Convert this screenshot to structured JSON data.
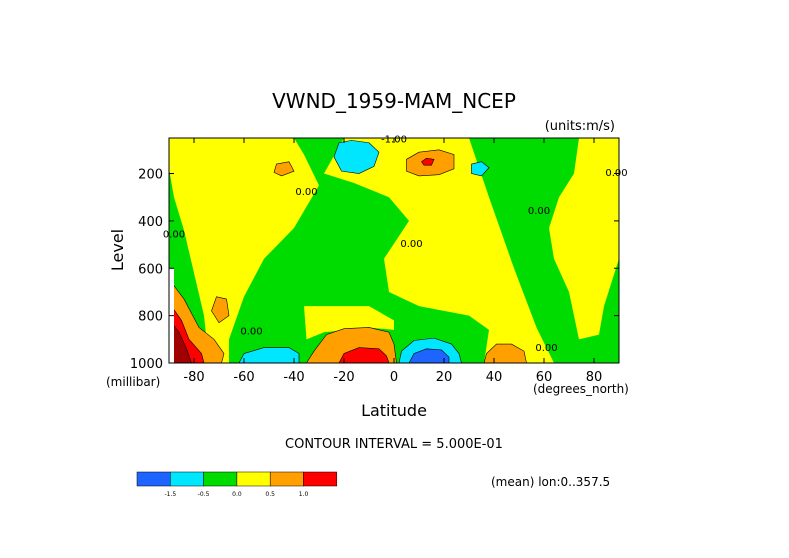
{
  "chart_data": {
    "type": "contour",
    "title": "VWND_1959-MAM_NCEP",
    "units_label": "(units:m/s)",
    "xlabel": "Latitude",
    "ylabel": "Level",
    "x_units": "(degrees_north)",
    "y_units": "(millibar)",
    "xlim": [
      -90,
      90
    ],
    "ylim": [
      1000,
      50
    ],
    "x_ticks": [
      -80,
      -60,
      -40,
      -20,
      0,
      20,
      40,
      60,
      80
    ],
    "y_ticks": [
      200,
      400,
      600,
      800,
      1000
    ],
    "y_reversed": true,
    "contour_interval_text": "CONTOUR INTERVAL = 5.000E-01",
    "mean_note": "(mean) lon:0..357.5",
    "contour_labels": [
      {
        "text": "-1.00",
        "x": 0,
        "y": 70
      },
      {
        "text": "0.00",
        "x": -35,
        "y": 290
      },
      {
        "text": "0.00",
        "x": 7,
        "y": 510
      },
      {
        "text": "0.00",
        "x": 58,
        "y": 370
      },
      {
        "text": "0.00",
        "x": -57,
        "y": 880
      },
      {
        "text": "0.00",
        "x": 61,
        "y": 950
      },
      {
        "text": "0.00",
        "x": -88,
        "y": 470
      },
      {
        "text": "0.00",
        "x": 89,
        "y": 210
      }
    ],
    "legend": {
      "colors": [
        "#1e64ff",
        "#00e6ff",
        "#00dc00",
        "#ffff00",
        "#ffa000",
        "#ff0000"
      ],
      "labels": [
        "-1.5",
        "-0.5",
        "0.0",
        "0.5",
        "1.0"
      ]
    },
    "regions": [
      {
        "level": "negative_strong",
        "color": "#00e6ff",
        "pts": [
          [
            -22,
            70
          ],
          [
            -17,
            60
          ],
          [
            -10,
            70
          ],
          [
            -6,
            110
          ],
          [
            -8,
            170
          ],
          [
            -14,
            200
          ],
          [
            -21,
            190
          ],
          [
            -24,
            130
          ]
        ]
      },
      {
        "level": "negative_weak",
        "color": "#00e6ff",
        "pts": [
          [
            31,
            160
          ],
          [
            35,
            150
          ],
          [
            38,
            175
          ],
          [
            35,
            210
          ],
          [
            31,
            200
          ]
        ]
      },
      {
        "level": "positive_small",
        "color": "#ffa000",
        "pts": [
          [
            -47,
            160
          ],
          [
            -42,
            150
          ],
          [
            -40,
            190
          ],
          [
            -45,
            210
          ],
          [
            -48,
            195
          ]
        ]
      },
      {
        "level": "positive",
        "color": "#ffa000",
        "pts": [
          [
            5,
            140
          ],
          [
            10,
            110
          ],
          [
            18,
            100
          ],
          [
            24,
            120
          ],
          [
            24,
            180
          ],
          [
            18,
            205
          ],
          [
            10,
            210
          ],
          [
            5,
            190
          ]
        ]
      },
      {
        "level": "positive_peak",
        "color": "#ff0000",
        "pts": [
          [
            11,
            150
          ],
          [
            13,
            135
          ],
          [
            16,
            140
          ],
          [
            15,
            165
          ],
          [
            12,
            165
          ]
        ]
      },
      {
        "level": "positive_lower_south",
        "color": "#ffa000",
        "pts": [
          [
            -35,
            1000
          ],
          [
            -32,
            950
          ],
          [
            -27,
            880
          ],
          [
            -20,
            855
          ],
          [
            -10,
            850
          ],
          [
            -2,
            870
          ],
          [
            0,
            920
          ],
          [
            1,
            1000
          ]
        ]
      },
      {
        "level": "positive_peak_lower",
        "color": "#ff0000",
        "pts": [
          [
            -22,
            1000
          ],
          [
            -20,
            960
          ],
          [
            -14,
            935
          ],
          [
            -6,
            940
          ],
          [
            -3,
            970
          ],
          [
            -2,
            1000
          ]
        ]
      },
      {
        "level": "negative_lower_north",
        "color": "#00e6ff",
        "pts": [
          [
            2,
            1000
          ],
          [
            3,
            950
          ],
          [
            8,
            905
          ],
          [
            16,
            895
          ],
          [
            23,
            920
          ],
          [
            26,
            960
          ],
          [
            27,
            1000
          ]
        ]
      },
      {
        "level": "negative_peak_lower",
        "color": "#1e64ff",
        "pts": [
          [
            6,
            1000
          ],
          [
            8,
            960
          ],
          [
            13,
            940
          ],
          [
            19,
            945
          ],
          [
            22,
            975
          ],
          [
            22,
            1000
          ]
        ]
      },
      {
        "level": "negative_lower_west",
        "color": "#00e6ff",
        "pts": [
          [
            -62,
            1000
          ],
          [
            -60,
            960
          ],
          [
            -52,
            935
          ],
          [
            -42,
            935
          ],
          [
            -38,
            960
          ],
          [
            -38,
            1000
          ]
        ]
      },
      {
        "level": "positive_lower_east",
        "color": "#ffa000",
        "pts": [
          [
            36,
            1000
          ],
          [
            37,
            960
          ],
          [
            41,
            920
          ],
          [
            47,
            920
          ],
          [
            52,
            950
          ],
          [
            53,
            1000
          ]
        ]
      },
      {
        "level": "positive_polar",
        "color": "#ffa000",
        "pts": [
          [
            -89,
            660
          ],
          [
            -84,
            730
          ],
          [
            -78,
            850
          ],
          [
            -72,
            900
          ],
          [
            -68,
            960
          ],
          [
            -69,
            1000
          ],
          [
            -89,
            1000
          ]
        ]
      },
      {
        "level": "positive_polar_peak",
        "color": "#ff0000",
        "pts": [
          [
            -89,
            760
          ],
          [
            -85,
            820
          ],
          [
            -82,
            900
          ],
          [
            -77,
            960
          ],
          [
            -76,
            1000
          ],
          [
            -89,
            1000
          ]
        ]
      },
      {
        "level": "positive_polar_max",
        "color": "#a00000",
        "pts": [
          [
            -89,
            830
          ],
          [
            -86,
            870
          ],
          [
            -83,
            940
          ],
          [
            -81,
            1000
          ],
          [
            -89,
            1000
          ]
        ]
      },
      {
        "level": "positive_west_small",
        "color": "#ffa000",
        "pts": [
          [
            -73,
            780
          ],
          [
            -71,
            720
          ],
          [
            -67,
            730
          ],
          [
            -66,
            800
          ],
          [
            -70,
            830
          ]
        ]
      }
    ]
  }
}
